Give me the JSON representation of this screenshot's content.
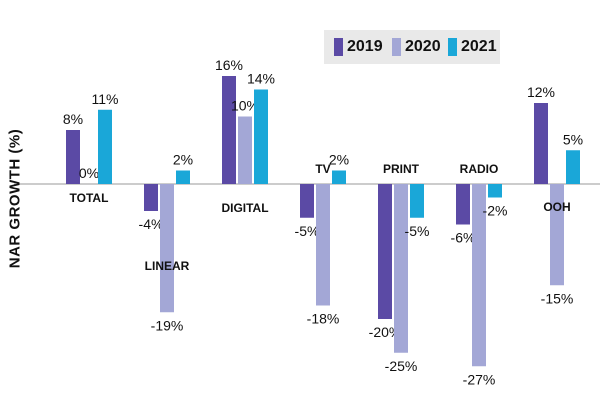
{
  "chart_data": {
    "type": "bar",
    "title": "",
    "xlabel": "",
    "ylabel": "NAR GROWTH (%)",
    "ylim": [
      -30,
      20
    ],
    "categories": [
      "TOTAL",
      "LINEAR",
      "DIGITAL",
      "TV",
      "PRINT",
      "RADIO",
      "OOH"
    ],
    "series": [
      {
        "name": "2019",
        "color": "#5b4aa5",
        "values": [
          8,
          -4,
          16,
          -5,
          -20,
          -6,
          12
        ],
        "labels": [
          "8%",
          "-4%",
          "16%",
          "-5%",
          "-20%",
          "-6%",
          "12%"
        ]
      },
      {
        "name": "2020",
        "color": "#a3a7d6",
        "values": [
          0,
          -19,
          10,
          -18,
          -25,
          -27,
          -15
        ],
        "labels": [
          "0%",
          "-19%",
          "10%",
          "-18%",
          "-25%",
          "-27%",
          "-15%"
        ]
      },
      {
        "name": "2021",
        "color": "#1aa7d8",
        "values": [
          11,
          2,
          14,
          2,
          -5,
          -2,
          5
        ],
        "labels": [
          "11%",
          "2%",
          "14%",
          "2%",
          "-5%",
          "-2%",
          "5%"
        ]
      }
    ],
    "legend_position": "top-right"
  }
}
